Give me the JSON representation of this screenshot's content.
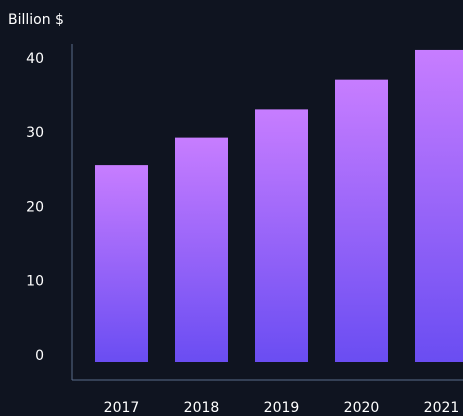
{
  "chart_data": {
    "type": "bar",
    "ylabel": "Billion $",
    "categories": [
      "2017",
      "2018",
      "2019",
      "2020",
      "2021"
    ],
    "values": [
      26.5,
      30.2,
      34.0,
      38.0,
      42.0
    ],
    "ylim": [
      0,
      42
    ],
    "yticks": [
      0,
      10,
      20,
      30,
      40
    ],
    "grid": false,
    "colors": {
      "background": "#0f1420",
      "bar_top": "#c77dff",
      "bar_bottom": "#6a4df2",
      "axis": "#5a6b8a",
      "text": "#ffffff"
    }
  }
}
